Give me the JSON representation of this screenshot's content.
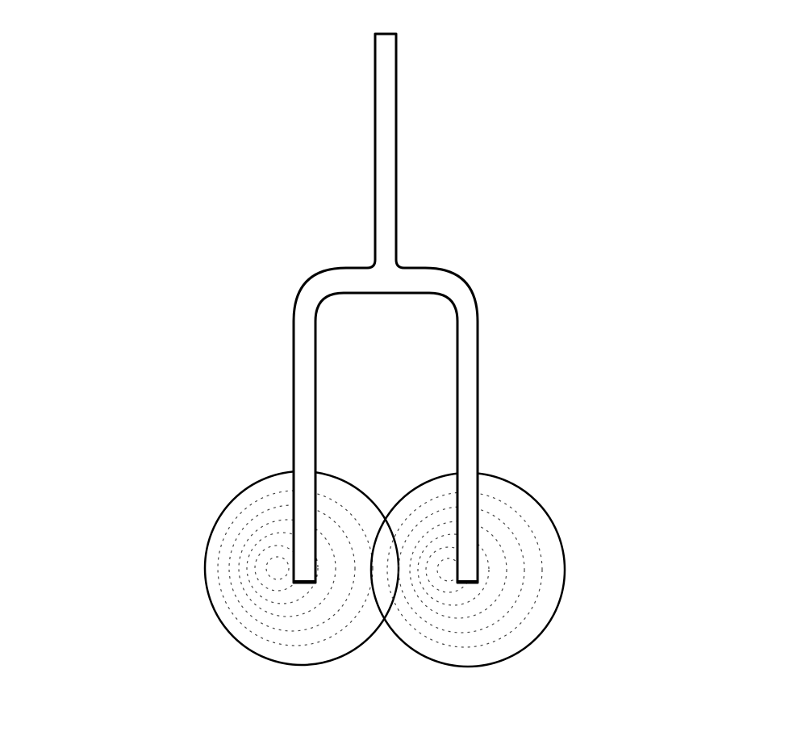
{
  "colors": {
    "background": "#ffffff",
    "stroke": "#000000",
    "ring": "#333333"
  },
  "elements": {
    "tube": "forked-tube",
    "bulb_left": "left-bulb",
    "bulb_right": "right-bulb"
  }
}
